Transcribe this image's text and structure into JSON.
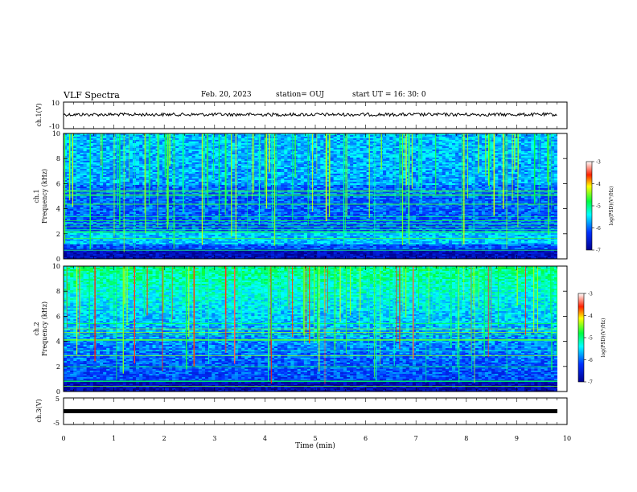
{
  "header": {
    "title": "VLF Spectra",
    "date": "Feb. 20, 2023",
    "station": "station= OUJ",
    "start_ut": "start  UT =   16: 30: 0"
  },
  "axes": {
    "xlabel": "Time (min)",
    "xticks": [
      "0",
      "1",
      "2",
      "3",
      "4",
      "5",
      "6",
      "7",
      "8",
      "9",
      "10"
    ],
    "ch1_v_label": "ch.1(V)",
    "ch1_v_ticks": [
      "10",
      "-10"
    ],
    "ch1_spec_label": "ch.1",
    "ch1_freq_label": "Frequency (kHz)",
    "ch2_spec_label": "ch.2",
    "ch2_freq_label": "Frequency (kHz)",
    "freq_ticks": [
      "10",
      "8",
      "6",
      "4",
      "2",
      "0"
    ],
    "ch3_v_label": "ch.3(V)",
    "ch3_v_ticks": [
      "5",
      "-5"
    ]
  },
  "colorbars": [
    {
      "ticks": [
        "-3",
        "-4",
        "-5",
        "-6",
        "-7"
      ],
      "label": "log(PSD)(V²/Hz)"
    },
    {
      "ticks": [
        "-3",
        "-4",
        "-5",
        "-6",
        "-7"
      ],
      "label": "log(PSD)(V²/Hz)"
    }
  ],
  "colors": {
    "axis": "#000000",
    "trace": "#000000"
  },
  "chart_data": [
    {
      "type": "line",
      "ylabel": "ch.1(V)",
      "ylim": [
        -10,
        10
      ],
      "xlim": [
        0,
        10
      ],
      "xlabel": "Time (min)",
      "series": [
        {
          "values": "noise trace around 0 V"
        }
      ]
    },
    {
      "type": "heatmap",
      "ylabel": "Frequency (kHz)",
      "panel": "ch.1",
      "xlim": [
        0,
        10
      ],
      "ylim": [
        0,
        10
      ],
      "colorbar_range": [
        -7,
        -3
      ],
      "colorbar_label": "log(PSD)(V²/Hz)"
    },
    {
      "type": "heatmap",
      "ylabel": "Frequency (kHz)",
      "panel": "ch.2",
      "xlim": [
        0,
        10
      ],
      "ylim": [
        0,
        10
      ],
      "colorbar_range": [
        -7,
        -3
      ],
      "colorbar_label": "log(PSD)(V²/Hz)"
    },
    {
      "type": "line",
      "ylabel": "ch.3(V)",
      "ylim": [
        -5,
        5
      ],
      "xlim": [
        0,
        10
      ],
      "series": [
        {
          "values": "constant near 0 V"
        }
      ]
    }
  ]
}
